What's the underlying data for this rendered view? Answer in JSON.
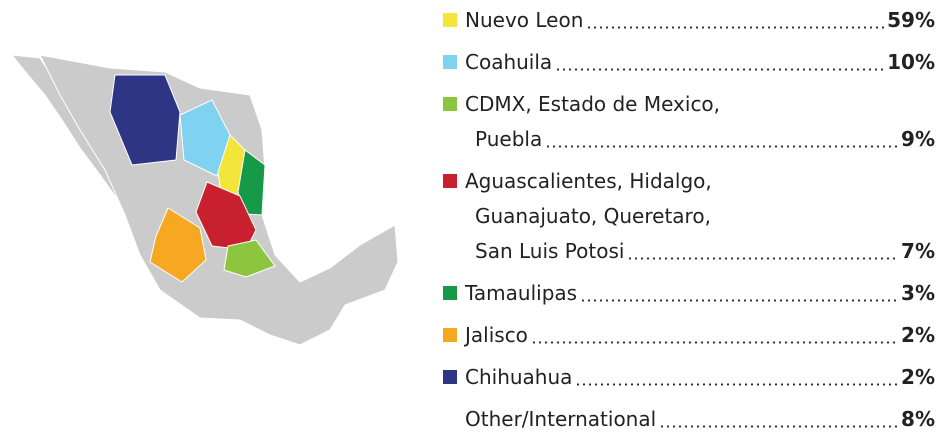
{
  "legend": [
    {
      "lines": [
        "Nuevo Leon"
      ],
      "value": "59%",
      "color": "#f3e53a"
    },
    {
      "lines": [
        "Coahuila"
      ],
      "value": "10%",
      "color": "#7fd2f0"
    },
    {
      "lines": [
        "CDMX, Estado de Mexico,",
        "Puebla"
      ],
      "value": "9%",
      "color": "#8cc63f"
    },
    {
      "lines": [
        "Aguascalientes, Hidalgo,",
        "Guanajuato, Queretaro,",
        "San Luis Potosi"
      ],
      "value": "7%",
      "color": "#c8202f"
    },
    {
      "lines": [
        "Tamaulipas"
      ],
      "value": "3%",
      "color": "#169a48"
    },
    {
      "lines": [
        "Jalisco"
      ],
      "value": "2%",
      "color": "#f7a823"
    },
    {
      "lines": [
        "Chihuahua"
      ],
      "value": "2%",
      "color": "#2e3584"
    },
    {
      "lines": [
        "Other/International"
      ],
      "value": "8%"
    }
  ]
}
